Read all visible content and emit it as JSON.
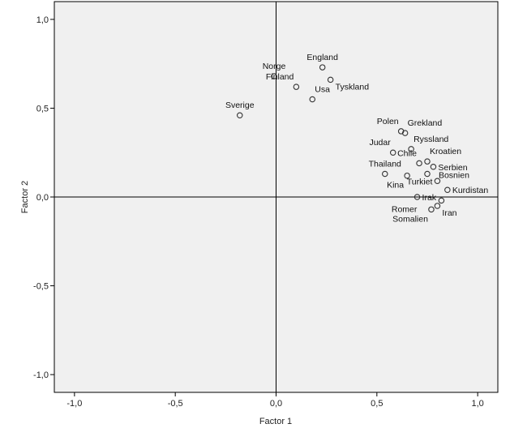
{
  "chart_data": {
    "type": "scatter",
    "title": "",
    "xlabel": "Factor 1",
    "ylabel": "Factor 2",
    "xlim": [
      -1.1,
      1.1
    ],
    "ylim": [
      -1.1,
      1.1
    ],
    "x_ticks": [
      -1.0,
      -0.5,
      0.0,
      0.5,
      1.0
    ],
    "x_tick_labels": [
      "-1,0",
      "-0,5",
      "0,0",
      "0,5",
      "1,0"
    ],
    "y_ticks": [
      1.0,
      0.5,
      0.0,
      -0.5,
      -1.0
    ],
    "y_tick_labels": [
      "1,0",
      "0,5",
      "0,0",
      "-0,5",
      "-1,0"
    ],
    "reference_lines": {
      "x": 0,
      "y": 0
    },
    "grid": false,
    "plot_background": "#f0f0f0",
    "marker_color": "#333333",
    "points": [
      {
        "label": "England",
        "x": 0.23,
        "y": 0.73,
        "pos": "above"
      },
      {
        "label": "Norge",
        "x": -0.01,
        "y": 0.68,
        "pos": "above"
      },
      {
        "label": "Tyskland",
        "x": 0.27,
        "y": 0.66,
        "pos": "belowright"
      },
      {
        "label": "Finland",
        "x": 0.1,
        "y": 0.62,
        "pos": "aboveleft"
      },
      {
        "label": "Usa",
        "x": 0.18,
        "y": 0.55,
        "pos": "aboveright"
      },
      {
        "label": "Sverige",
        "x": -0.18,
        "y": 0.46,
        "pos": "above"
      },
      {
        "label": "Polen",
        "x": 0.62,
        "y": 0.37,
        "pos": "aboveleft"
      },
      {
        "label": "Grekland",
        "x": 0.64,
        "y": 0.36,
        "pos": "aboveright"
      },
      {
        "label": "Ryssland",
        "x": 0.67,
        "y": 0.27,
        "pos": "aboveright"
      },
      {
        "label": "Judar",
        "x": 0.58,
        "y": 0.25,
        "pos": "aboveleft"
      },
      {
        "label": "Kroatien",
        "x": 0.75,
        "y": 0.2,
        "pos": "aboveright"
      },
      {
        "label": "Chile",
        "x": 0.71,
        "y": 0.19,
        "pos": "aboveleft"
      },
      {
        "label": "Serbien",
        "x": 0.78,
        "y": 0.17,
        "pos": "right"
      },
      {
        "label": "Thailand",
        "x": 0.54,
        "y": 0.13,
        "pos": "above"
      },
      {
        "label": "Bosnien",
        "x": 0.75,
        "y": 0.13,
        "pos": "right2"
      },
      {
        "label": "Kina",
        "x": 0.65,
        "y": 0.12,
        "pos": "belowleft"
      },
      {
        "label": "Turkiet",
        "x": 0.8,
        "y": 0.09,
        "pos": "left"
      },
      {
        "label": "Kurdistan",
        "x": 0.85,
        "y": 0.04,
        "pos": "right"
      },
      {
        "label": "Irak",
        "x": 0.7,
        "y": 0.0,
        "pos": "right"
      },
      {
        "label": "Romer",
        "x": 0.82,
        "y": -0.02,
        "pos": "far-left-below"
      },
      {
        "label": "Iran",
        "x": 0.8,
        "y": -0.05,
        "pos": "belowright"
      },
      {
        "label": "Somalien",
        "x": 0.77,
        "y": -0.07,
        "pos": "belowleft"
      }
    ]
  }
}
